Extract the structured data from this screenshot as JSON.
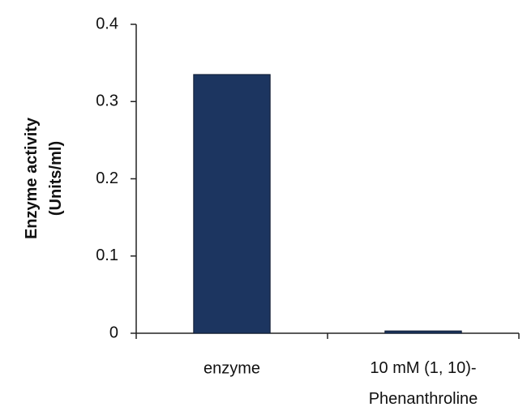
{
  "chart_data": {
    "type": "bar",
    "y_label": "Enzyme activity\n(Units/ml)",
    "categories": [
      "enzyme",
      "10 mM (1, 10)-\nPhenanthroline"
    ],
    "values": [
      0.335,
      0.003
    ],
    "color": "#1c3560",
    "ylim": [
      0,
      0.4
    ],
    "yticks": [
      0,
      0.1,
      0.2,
      0.3,
      0.4
    ],
    "grid": false
  }
}
